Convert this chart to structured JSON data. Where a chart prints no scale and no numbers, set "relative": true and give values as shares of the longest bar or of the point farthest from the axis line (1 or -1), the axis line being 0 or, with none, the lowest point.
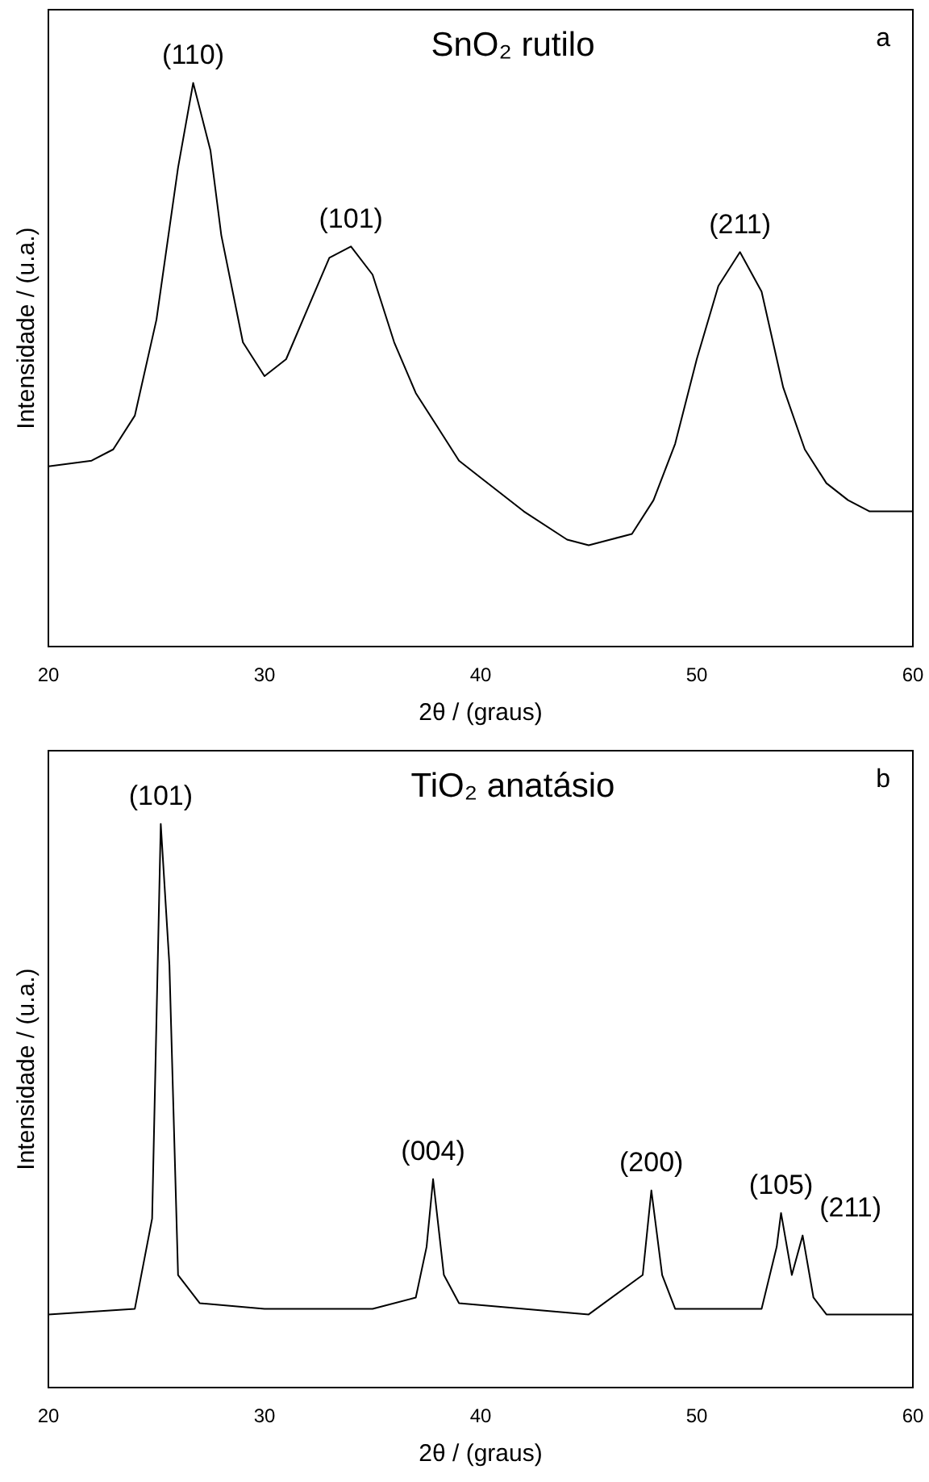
{
  "chart_data": [
    {
      "type": "line",
      "title": "SnO₂ rutilo",
      "xlabel": "2θ / (graus)",
      "ylabel": "Intensidade / (u.a.)",
      "relative": true,
      "xlim": [
        20,
        60
      ],
      "xticks": [
        20,
        30,
        40,
        50,
        60
      ],
      "grid": false,
      "legend": false,
      "tick_labels": "x",
      "series": [
        {
          "color": "#000000",
          "x": [
            20,
            22,
            23,
            24,
            25,
            26,
            26.7,
            27.5,
            28,
            29,
            30,
            31,
            32,
            33,
            34,
            35,
            36,
            37,
            38,
            39,
            40,
            42,
            44,
            45,
            46,
            47,
            48,
            49,
            50,
            51,
            52,
            53,
            54,
            55,
            56,
            57,
            58,
            60
          ],
          "values": [
            0.32,
            0.33,
            0.35,
            0.41,
            0.58,
            0.85,
            1.0,
            0.88,
            0.73,
            0.54,
            0.48,
            0.51,
            0.6,
            0.69,
            0.71,
            0.66,
            0.54,
            0.45,
            0.39,
            0.33,
            0.3,
            0.24,
            0.19,
            0.18,
            0.19,
            0.2,
            0.26,
            0.36,
            0.51,
            0.64,
            0.7,
            0.63,
            0.46,
            0.35,
            0.29,
            0.26,
            0.24,
            0.24
          ]
        }
      ],
      "annotations": [
        "a",
        {
          "text": "(110)",
          "x": 26.7,
          "y": 1.0
        },
        {
          "text": "(101)",
          "x": 34,
          "y": 0.71
        },
        {
          "text": "(211)",
          "x": 52,
          "y": 0.7
        }
      ]
    },
    {
      "type": "line",
      "title": "TiO₂ anatásio",
      "xlabel": "2θ / (graus)",
      "ylabel": "Intensidade / (u.a.)",
      "relative": true,
      "xlim": [
        20,
        60
      ],
      "xticks": [
        20,
        30,
        40,
        50,
        60
      ],
      "grid": false,
      "legend": false,
      "tick_labels": "x",
      "series": [
        {
          "color": "#000000",
          "x": [
            20,
            24,
            24.8,
            25.2,
            25.6,
            26,
            27,
            30,
            35,
            37,
            37.5,
            37.8,
            38.3,
            39,
            45,
            47.5,
            47.9,
            48.4,
            49,
            53,
            53.7,
            53.9,
            54.4,
            54.9,
            55.4,
            56,
            60
          ],
          "values": [
            0.13,
            0.14,
            0.3,
            1.0,
            0.75,
            0.2,
            0.15,
            0.14,
            0.14,
            0.16,
            0.25,
            0.37,
            0.2,
            0.15,
            0.13,
            0.2,
            0.35,
            0.2,
            0.14,
            0.14,
            0.25,
            0.31,
            0.2,
            0.27,
            0.16,
            0.13,
            0.13
          ]
        }
      ],
      "annotations": [
        "b",
        {
          "text": "(101)",
          "x": 25.2,
          "y": 1.0
        },
        {
          "text": "(004)",
          "x": 37.8,
          "y": 0.37
        },
        {
          "text": "(200)",
          "x": 47.9,
          "y": 0.35
        },
        {
          "text": "(105)",
          "x": 53.9,
          "y": 0.31
        },
        {
          "text": "(211)",
          "x": 54.9,
          "y": 0.27
        }
      ]
    }
  ]
}
